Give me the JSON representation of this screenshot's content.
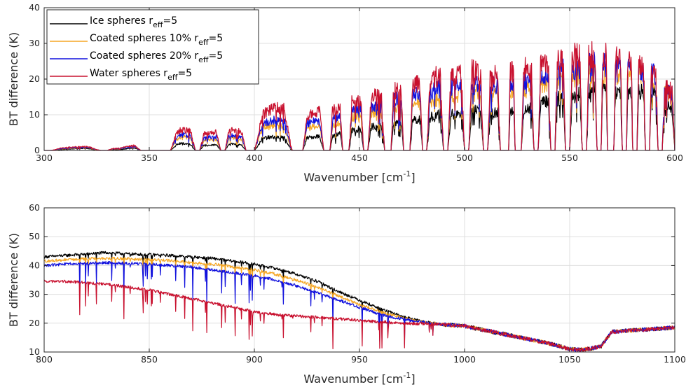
{
  "colors": {
    "ice": "#000000",
    "coated10": "#f5a623",
    "coated20": "#1111dd",
    "water": "#c8102e",
    "grid": "#dfdfdf",
    "axis": "#262626"
  },
  "chart_data": [
    {
      "type": "line",
      "title": "",
      "xlabel": "Wavenumber [cm",
      "xlabel_sup": "-1",
      "xlabel_end": "]",
      "ylabel": "BT difference (K)",
      "xlim": [
        300,
        600
      ],
      "ylim": [
        0,
        40
      ],
      "xticks": [
        300,
        350,
        400,
        450,
        500,
        550,
        600
      ],
      "yticks": [
        0,
        10,
        20,
        30,
        40
      ],
      "grid": true,
      "legend_position": "top-left",
      "legend": [
        {
          "name": "Ice spheres r",
          "sub": "eff",
          "tail": "=5",
          "color_key": "ice"
        },
        {
          "name": "Coated spheres 10% r",
          "sub": "eff",
          "tail": "=5",
          "color_key": "coated10"
        },
        {
          "name": "Coated spheres 20% r",
          "sub": "eff",
          "tail": "=5",
          "color_key": "coated20"
        },
        {
          "name": "Water spheres r",
          "sub": "eff",
          "tail": "=5",
          "color_key": "water"
        }
      ],
      "x": [
        300,
        305,
        310,
        315,
        320,
        325,
        330,
        335,
        340,
        345,
        350,
        355,
        360,
        365,
        370,
        375,
        380,
        385,
        390,
        395,
        400,
        405,
        410,
        415,
        420,
        425,
        430,
        435,
        440,
        445,
        450,
        455,
        460,
        465,
        470,
        475,
        480,
        485,
        490,
        495,
        500,
        505,
        510,
        515,
        520,
        525,
        530,
        535,
        540,
        545,
        550,
        555,
        560,
        565,
        570,
        575,
        580,
        585,
        590,
        595,
        600
      ],
      "series": [
        {
          "key": "ice",
          "values": [
            0,
            0.2,
            0.3,
            0.5,
            0.6,
            0.2,
            0.3,
            0.2,
            0.5,
            0.8,
            0.6,
            0.3,
            1,
            2,
            1.8,
            1.5,
            1.5,
            1.7,
            1.8,
            1.5,
            2.5,
            3.5,
            3.8,
            3.5,
            2,
            3.5,
            4,
            4,
            4.5,
            5.5,
            6,
            6.5,
            7,
            7.5,
            8,
            8.5,
            9,
            9.5,
            10.5,
            10,
            11,
            11.5,
            10,
            10.5,
            11,
            11.5,
            12,
            13,
            14,
            14.5,
            15,
            16,
            17,
            17.5,
            17,
            16.5,
            17,
            16.5,
            16,
            13,
            11
          ]
        },
        {
          "key": "coated10",
          "values": [
            0,
            0.3,
            0.5,
            0.7,
            0.8,
            0.4,
            0.5,
            0.4,
            0.8,
            1.2,
            1,
            0.5,
            1.8,
            3.8,
            3.5,
            2.8,
            3,
            3.2,
            3.5,
            3,
            5,
            6.5,
            7,
            6.5,
            4,
            6,
            7,
            7,
            7.5,
            9,
            10,
            10.5,
            11,
            12,
            12.5,
            13,
            13.5,
            14,
            15.5,
            15,
            16,
            16.5,
            15,
            16,
            16.5,
            17,
            17.5,
            18.5,
            19.5,
            20,
            20.5,
            21,
            21.5,
            22,
            21.5,
            21,
            21.5,
            20.5,
            20,
            16,
            14
          ]
        },
        {
          "key": "coated20",
          "values": [
            0,
            0.4,
            0.6,
            0.8,
            0.9,
            0.5,
            0.6,
            0.5,
            0.9,
            1.3,
            1.1,
            0.6,
            2.2,
            4.5,
            4.2,
            3.4,
            3.7,
            4,
            4.2,
            3.6,
            6,
            7.8,
            8.5,
            8,
            5,
            7.5,
            8.5,
            8.5,
            9,
            11,
            12,
            12.5,
            13,
            14,
            14.5,
            15,
            16,
            16.5,
            18,
            17.5,
            18.5,
            19,
            17.5,
            18.5,
            19,
            19.5,
            20,
            21,
            22,
            22.5,
            23,
            23.5,
            24,
            24,
            23.5,
            23,
            23.5,
            22.5,
            22,
            17.5,
            15.5
          ]
        },
        {
          "key": "water",
          "values": [
            0,
            0.5,
            0.8,
            1,
            1.1,
            0.6,
            0.7,
            0.6,
            1.2,
            1.6,
            1.4,
            0.8,
            2.8,
            5.8,
            5.5,
            4.5,
            5,
            5.5,
            5.8,
            5,
            7.5,
            10.5,
            12,
            11.5,
            6.5,
            9.5,
            11,
            11,
            11.5,
            13.5,
            14.5,
            15,
            15.5,
            16.5,
            17,
            18,
            19,
            20,
            22,
            21,
            22,
            22.5,
            20.5,
            21.5,
            22,
            22.5,
            23,
            24,
            25,
            25.5,
            26,
            26.5,
            27,
            27,
            26.5,
            26,
            25.5,
            24.5,
            23,
            18,
            16
          ]
        }
      ]
    },
    {
      "type": "line",
      "title": "",
      "xlabel": "Wavenumber [cm",
      "xlabel_sup": "-1",
      "xlabel_end": "]",
      "ylabel": "BT difference (K)",
      "xlim": [
        800,
        1100
      ],
      "ylim": [
        10,
        60
      ],
      "xticks": [
        800,
        850,
        900,
        950,
        1000,
        1050,
        1100
      ],
      "yticks": [
        10,
        20,
        30,
        40,
        50,
        60
      ],
      "grid": true,
      "legend_position": "none",
      "x": [
        800,
        810,
        820,
        830,
        840,
        850,
        860,
        870,
        880,
        890,
        900,
        910,
        920,
        930,
        940,
        950,
        960,
        970,
        980,
        990,
        1000,
        1010,
        1020,
        1030,
        1040,
        1045,
        1050,
        1055,
        1060,
        1065,
        1070,
        1080,
        1090,
        1100
      ],
      "series": [
        {
          "key": "ice",
          "values": [
            43,
            43.5,
            44,
            44.5,
            44,
            43.8,
            43.5,
            43,
            42.5,
            41.5,
            40.5,
            39,
            37,
            34.5,
            31,
            28,
            25,
            22.5,
            20.5,
            19.5,
            19,
            17.5,
            16,
            14.5,
            13,
            12,
            11,
            10.8,
            11.2,
            12,
            17,
            17.5,
            18,
            18.5
          ]
        },
        {
          "key": "coated10",
          "values": [
            41.5,
            42,
            42.3,
            42.5,
            42.3,
            42,
            41.7,
            41,
            40.5,
            39.5,
            38.5,
            37,
            35,
            32.5,
            29.5,
            26.5,
            24,
            22,
            20.5,
            19.5,
            19,
            17.5,
            16,
            14.5,
            13,
            12,
            11,
            10.8,
            11.2,
            12,
            17,
            17.5,
            18,
            18.5
          ]
        },
        {
          "key": "coated20",
          "values": [
            40,
            40.5,
            40.8,
            41,
            40.8,
            40.5,
            40,
            39.5,
            38.5,
            37.5,
            36.5,
            35,
            33,
            30.5,
            28,
            25.5,
            23,
            21.5,
            20.3,
            19.5,
            19,
            17.5,
            16,
            14.5,
            13,
            12,
            11,
            10.8,
            11.2,
            12,
            17,
            17.5,
            18,
            18.5
          ]
        },
        {
          "key": "water",
          "values": [
            34.5,
            34.5,
            34,
            33.5,
            32.5,
            31.5,
            30,
            28.5,
            27,
            25.5,
            24,
            23,
            22.5,
            22,
            21.5,
            21,
            20.5,
            20,
            19.8,
            19.5,
            19,
            17.5,
            16,
            14.5,
            13,
            12,
            11,
            10.8,
            11.2,
            12,
            17,
            17.5,
            18,
            18.5
          ]
        }
      ]
    }
  ]
}
